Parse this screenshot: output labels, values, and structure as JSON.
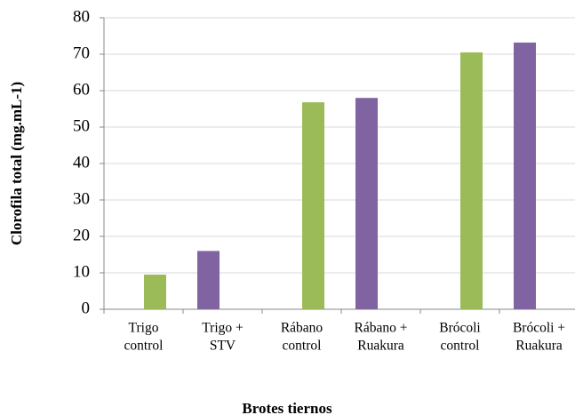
{
  "chart_data": {
    "type": "bar",
    "x_label": "Brotes tiernos",
    "y_label": "Clorofila total (mg.mL-1)",
    "categories": [
      [
        "Trigo",
        "control"
      ],
      [
        "Trigo +",
        "STV"
      ],
      [
        "Rábano",
        "control"
      ],
      [
        "Rábano +",
        "Ruakura"
      ],
      [
        "Brócoli",
        "control"
      ],
      [
        "Brócoli +",
        "Ruakura"
      ]
    ],
    "values": [
      9.5,
      16,
      56.8,
      58,
      70.5,
      73.2
    ],
    "colors": [
      "#9bbb59",
      "#8064a2",
      "#9bbb59",
      "#8064a2",
      "#9bbb59",
      "#8064a2"
    ],
    "ylim": [
      0,
      80
    ],
    "yticks": [
      0,
      10,
      20,
      30,
      40,
      50,
      60,
      70,
      80
    ],
    "grid": true
  }
}
